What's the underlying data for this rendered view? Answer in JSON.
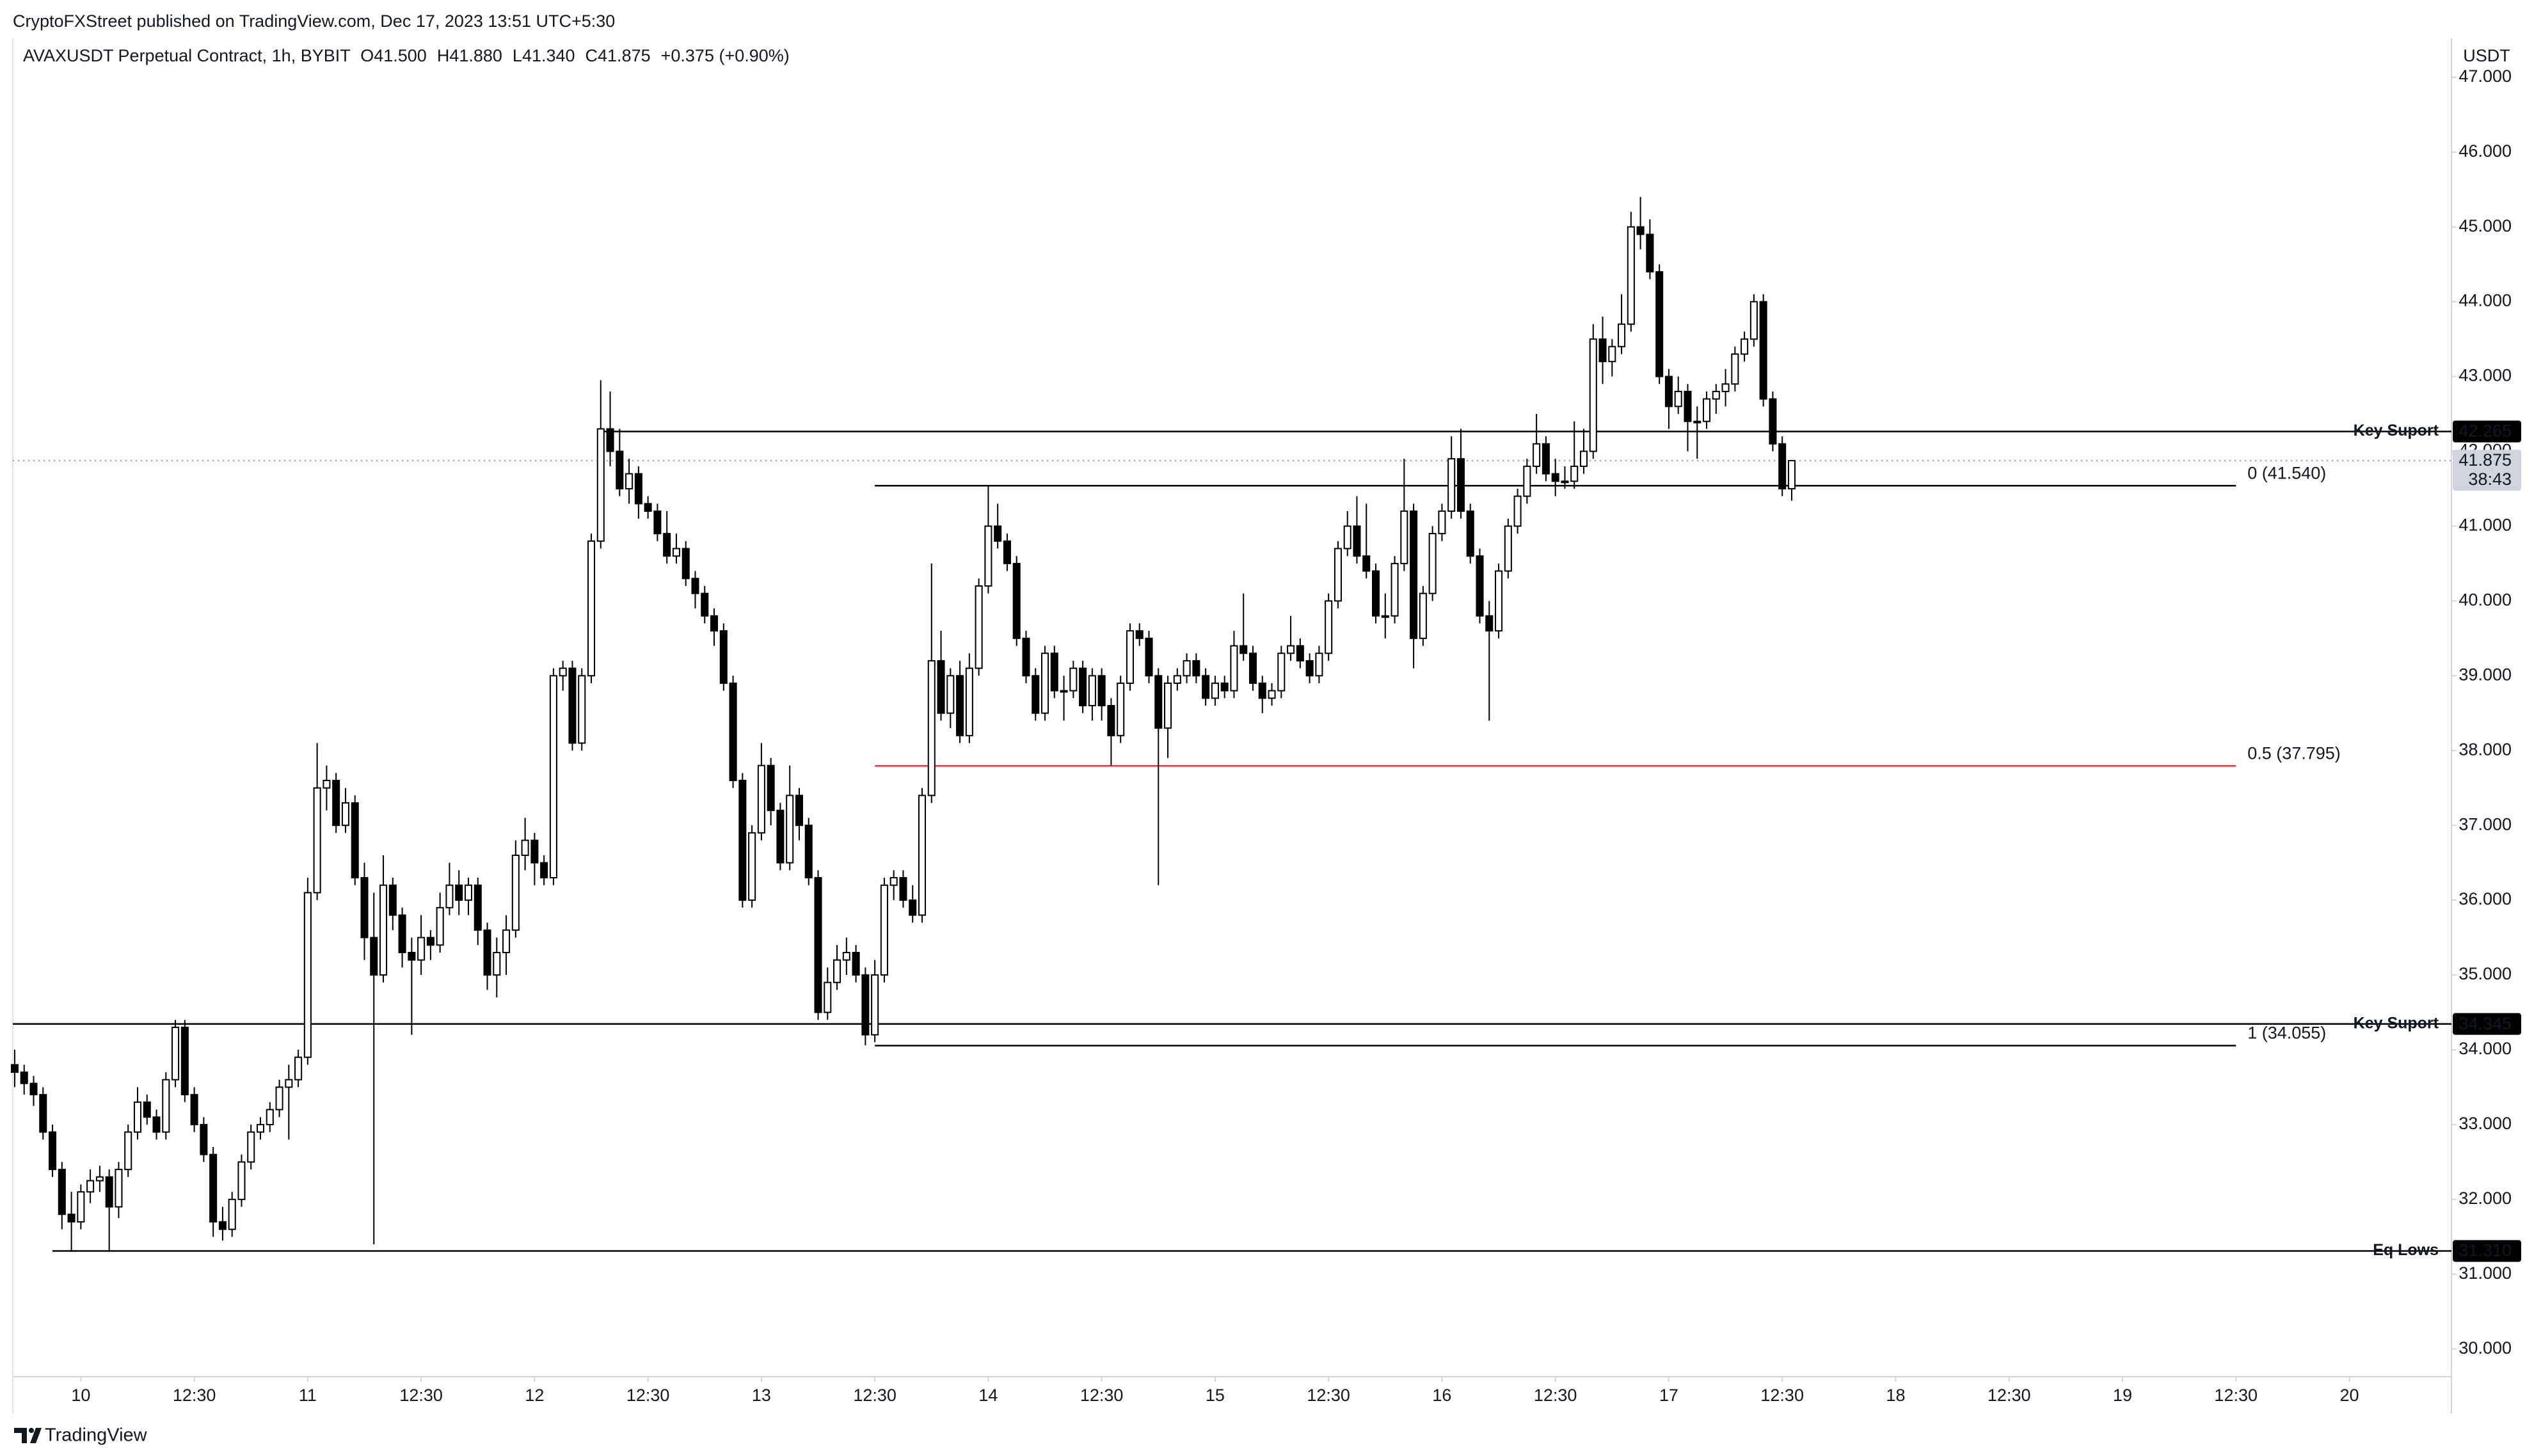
{
  "header": "CryptoFXStreet published on TradingView.com, Dec 17, 2023 13:51 UTC+5:30",
  "footer_brand": "TradingView",
  "chart_data": {
    "type": "candlestick",
    "title": "AVAXUSDT Perpetual Contract, 1h, BYBIT",
    "ohlc_legend": [
      "O41.500",
      "H41.880",
      "L41.340",
      "C41.875",
      "+0.375 (+0.90%)"
    ],
    "currency": "USDT",
    "up_color": "#ffffff",
    "down_color": "#000000",
    "outline_color": "#000000",
    "grid": false,
    "x": [
      -7,
      -6,
      -5,
      -4,
      -3,
      -2,
      -1,
      0,
      1,
      2,
      3,
      4,
      5,
      6,
      7,
      8,
      9,
      10,
      11,
      12,
      13,
      14,
      15,
      16,
      17,
      18,
      19,
      20,
      21,
      22,
      23,
      24,
      25,
      26,
      27,
      28,
      29,
      30,
      31,
      32,
      33,
      34,
      35,
      36,
      37,
      38,
      39,
      40,
      41,
      42,
      43,
      44,
      45,
      46,
      47,
      48,
      49,
      50,
      51,
      52,
      53,
      54,
      55,
      56,
      57,
      58,
      59,
      60,
      61,
      62,
      63,
      64,
      65,
      66,
      67,
      68,
      69,
      70,
      71,
      72,
      73,
      74,
      75,
      76,
      77,
      78,
      79,
      80,
      81,
      82,
      83,
      84,
      85,
      86,
      87,
      88,
      89,
      90,
      91,
      92,
      93,
      94,
      95,
      96,
      97,
      98,
      99,
      100,
      101,
      102,
      103,
      104,
      105,
      106,
      107,
      108,
      109,
      110,
      111,
      112,
      113,
      114,
      115,
      116,
      117,
      118,
      119,
      120,
      121,
      122,
      123,
      124,
      125,
      126,
      127,
      128,
      129,
      130,
      131,
      132,
      133,
      134,
      135,
      136,
      137,
      138,
      139,
      140,
      141,
      142,
      143,
      144,
      145,
      146,
      147,
      148,
      149,
      150,
      151,
      152,
      153,
      154,
      155,
      156,
      157,
      158,
      159,
      160,
      161,
      162,
      163,
      164,
      165,
      166,
      167,
      168,
      169,
      170,
      171,
      172,
      173,
      174,
      175,
      176,
      177,
      178,
      179,
      180,
      181
    ],
    "open": [
      33.8,
      33.7,
      33.55,
      33.4,
      32.9,
      32.4,
      31.8,
      31.7,
      32.1,
      32.25,
      32.3,
      31.9,
      32.4,
      32.9,
      33.3,
      33.1,
      32.9,
      33.6,
      34.3,
      33.4,
      33,
      32.6,
      31.7,
      31.6,
      32,
      32.5,
      32.9,
      33,
      33.2,
      33.5,
      33.6,
      33.9,
      36.1,
      37.5,
      37.6,
      37,
      37.3,
      36.3,
      35.5,
      35,
      36.2,
      35.8,
      35.3,
      35.2,
      35.5,
      35.4,
      35.9,
      36.2,
      36,
      36.2,
      35.6,
      35,
      35.3,
      35.6,
      36.6,
      36.8,
      36.5,
      36.3,
      39,
      39.1,
      38.1,
      39,
      40.8,
      42.3,
      42,
      41.5,
      41.7,
      41.3,
      41.2,
      40.9,
      40.6,
      40.7,
      40.3,
      40.1,
      39.8,
      39.6,
      38.9,
      37.6,
      36,
      36.9,
      37.8,
      37.2,
      36.5,
      37.4,
      37,
      36.3,
      34.5,
      34.9,
      35.2,
      35.3,
      35,
      34.2,
      35,
      36.2,
      36.3,
      36,
      35.8,
      37.4,
      39.2,
      38.5,
      39,
      38.2,
      39.1,
      40.2,
      41,
      40.8,
      40.5,
      39.5,
      39,
      38.5,
      39.3,
      38.8,
      38.8,
      39.1,
      38.6,
      39,
      38.6,
      38.2,
      38.9,
      39.6,
      39.5,
      39,
      38.3,
      38.9,
      39,
      39.2,
      39,
      38.7,
      38.9,
      38.8,
      39.4,
      39.3,
      38.9,
      38.7,
      38.8,
      39.3,
      39.4,
      39.2,
      39,
      39.3,
      40,
      40.7,
      41,
      40.6,
      40.4,
      39.8,
      39.8,
      40.5,
      41.2,
      39.5,
      40.1,
      40.9,
      41.2,
      41.9,
      41.2,
      40.6,
      39.8,
      39.6,
      40.4,
      41,
      41.4,
      41.8,
      42.1,
      41.7,
      41.6,
      41.6,
      41.8,
      42,
      43.5,
      43.2,
      43.4,
      43.7,
      45,
      44.9,
      44.4,
      43,
      42.6,
      42.8,
      42.4,
      42.4,
      42.7,
      42.8,
      42.9,
      43.3,
      43.5,
      44,
      42.7,
      42.1,
      41.5
    ],
    "high": [
      34,
      33.8,
      33.65,
      33.5,
      33,
      32.5,
      32.1,
      32.2,
      32.4,
      32.45,
      32.4,
      32.5,
      33,
      33.5,
      33.4,
      33.2,
      33.7,
      34.4,
      34.4,
      33.5,
      33.1,
      32.7,
      31.9,
      32.1,
      32.6,
      33,
      33.1,
      33.3,
      33.6,
      33.8,
      34,
      36.3,
      38.1,
      37.8,
      37.7,
      37.5,
      37.4,
      36.5,
      36.1,
      36.6,
      36.3,
      35.9,
      35.5,
      35.8,
      35.6,
      36.1,
      36.5,
      36.4,
      36.3,
      36.3,
      35.7,
      35.5,
      35.8,
      36.8,
      37.1,
      36.9,
      36.6,
      39.1,
      39.2,
      39.2,
      39.1,
      40.9,
      42.95,
      42.8,
      42.3,
      41.9,
      41.8,
      41.4,
      41.3,
      41.2,
      40.9,
      40.8,
      40.4,
      40.2,
      39.9,
      39.7,
      39,
      37.7,
      37,
      38.1,
      37.9,
      37.3,
      37.8,
      37.5,
      37.1,
      36.4,
      35.1,
      35.4,
      35.5,
      35.4,
      35.1,
      35.2,
      36.3,
      36.4,
      36.4,
      36.2,
      37.5,
      40.5,
      39.6,
      39.1,
      39.2,
      39.3,
      40.3,
      41.55,
      41.3,
      40.9,
      40.6,
      39.6,
      39.1,
      39.4,
      39.4,
      39,
      39.2,
      39.2,
      39.1,
      39.1,
      38.7,
      39,
      39.7,
      39.7,
      39.6,
      39.1,
      39,
      39.1,
      39.3,
      39.3,
      39.1,
      39,
      39,
      39.6,
      40.1,
      39.4,
      39,
      38.9,
      39.4,
      39.8,
      39.5,
      39.3,
      39.4,
      40.1,
      40.8,
      41.2,
      41.4,
      41.3,
      40.5,
      40.1,
      40.6,
      41.9,
      41.3,
      40.2,
      41,
      41.3,
      42.2,
      42.3,
      41.3,
      40.7,
      40,
      40.5,
      41.1,
      41.5,
      41.9,
      42.5,
      42.2,
      41.9,
      41.8,
      42.4,
      42.3,
      43.7,
      43.8,
      43.5,
      44.1,
      45.2,
      45.4,
      45.1,
      44.5,
      43.1,
      43,
      42.9,
      42.6,
      42.8,
      42.9,
      43.1,
      43.4,
      43.6,
      44.1,
      44.1,
      42.8,
      42.2,
      41.88
    ],
    "low": [
      33.5,
      33.4,
      33.25,
      32.8,
      32.3,
      31.6,
      31.3,
      31.6,
      31.95,
      32.1,
      31.3,
      31.75,
      32.3,
      32.8,
      33,
      32.8,
      32.8,
      33.5,
      33.3,
      32.9,
      32.5,
      31.5,
      31.45,
      31.5,
      31.9,
      32.4,
      32.8,
      32.9,
      33.1,
      32.8,
      33.5,
      33.8,
      36,
      37.2,
      36.9,
      36.9,
      36.2,
      35.2,
      31.4,
      34.9,
      35.6,
      35.1,
      34.2,
      35,
      35.2,
      35.3,
      35.8,
      35.8,
      35.8,
      35.4,
      34.8,
      34.7,
      35,
      35.5,
      36.4,
      36.2,
      36.2,
      36.2,
      38.8,
      38,
      38,
      38.9,
      40.7,
      41.8,
      41.4,
      41.3,
      41.1,
      41.1,
      40.8,
      40.5,
      40.5,
      40.2,
      39.9,
      39.7,
      39.4,
      38.8,
      37.5,
      35.9,
      35.9,
      36.8,
      37,
      36.4,
      36.4,
      36.8,
      36.2,
      34.4,
      34.4,
      34.8,
      35,
      34.9,
      34.06,
      34.1,
      34.9,
      36,
      35.9,
      35.7,
      35.7,
      37.3,
      38.4,
      38.3,
      38.1,
      38.1,
      39,
      40.1,
      40.7,
      40.4,
      39.4,
      38.9,
      38.4,
      38.4,
      38.7,
      38.4,
      38.7,
      38.5,
      38.4,
      38.4,
      37.8,
      38.1,
      38.8,
      39.4,
      38.9,
      36.2,
      37.9,
      38.8,
      38.9,
      38.9,
      38.6,
      38.6,
      38.7,
      38.7,
      39.2,
      38.8,
      38.5,
      38.6,
      38.7,
      39.2,
      39.1,
      38.9,
      38.9,
      39.2,
      39.9,
      40.6,
      40.5,
      40.3,
      39.7,
      39.5,
      39.7,
      40.4,
      39.1,
      39.4,
      40,
      40.8,
      41.1,
      41.1,
      40.5,
      39.7,
      38.4,
      39.5,
      40.3,
      40.9,
      41.3,
      41.7,
      41.6,
      41.4,
      41.5,
      41.5,
      41.7,
      41.9,
      42.9,
      43,
      43.3,
      43.6,
      44.7,
      44.3,
      42.9,
      42.3,
      42.5,
      42,
      41.9,
      42.3,
      42.5,
      42.6,
      42.8,
      43.2,
      43.4,
      42.6,
      42,
      41.4,
      41.34
    ],
    "close": [
      33.7,
      33.55,
      33.4,
      32.9,
      32.4,
      31.8,
      31.7,
      32.1,
      32.25,
      32.3,
      31.9,
      32.4,
      32.9,
      33.3,
      33.1,
      32.9,
      33.6,
      34.3,
      33.4,
      33,
      32.6,
      31.7,
      31.6,
      32,
      32.5,
      32.9,
      33,
      33.2,
      33.5,
      33.6,
      33.9,
      36.1,
      37.5,
      37.6,
      37,
      37.3,
      36.3,
      35.5,
      35,
      36.2,
      35.8,
      35.3,
      35.2,
      35.5,
      35.4,
      35.9,
      36.2,
      36,
      36.2,
      35.6,
      35,
      35.3,
      35.6,
      36.6,
      36.8,
      36.5,
      36.3,
      39,
      39.1,
      38.1,
      39,
      40.8,
      42.3,
      42,
      41.5,
      41.7,
      41.3,
      41.2,
      40.9,
      40.6,
      40.7,
      40.3,
      40.1,
      39.8,
      39.6,
      38.9,
      37.6,
      36,
      36.9,
      37.8,
      37.2,
      36.5,
      37.4,
      37,
      36.3,
      34.5,
      34.9,
      35.2,
      35.3,
      35,
      34.2,
      35,
      36.2,
      36.3,
      36,
      35.8,
      37.4,
      39.2,
      38.5,
      39,
      38.2,
      39.1,
      40.2,
      41,
      40.8,
      40.5,
      39.5,
      39,
      38.5,
      39.3,
      38.8,
      38.8,
      39.1,
      38.6,
      39,
      38.6,
      38.2,
      38.9,
      39.6,
      39.5,
      39,
      38.3,
      38.9,
      39,
      39.2,
      39,
      38.7,
      38.9,
      38.8,
      39.4,
      39.3,
      38.9,
      38.7,
      38.8,
      39.3,
      39.4,
      39.2,
      39,
      39.3,
      40,
      40.7,
      41,
      40.6,
      40.4,
      39.8,
      39.8,
      40.5,
      41.2,
      39.5,
      40.1,
      40.9,
      41.2,
      41.9,
      41.2,
      40.6,
      39.8,
      39.6,
      40.4,
      41,
      41.4,
      41.8,
      42.1,
      41.7,
      41.6,
      41.6,
      41.8,
      42,
      43.5,
      43.2,
      43.4,
      43.7,
      45,
      44.9,
      44.4,
      43,
      42.6,
      42.8,
      42.4,
      42.4,
      42.7,
      42.8,
      42.9,
      43.3,
      43.5,
      44,
      42.7,
      42.1,
      41.5,
      41.875
    ],
    "xlim": [
      -7.2,
      250.8
    ],
    "xticks": [
      {
        "value": 0,
        "label": "10"
      },
      {
        "value": 12,
        "label": "12:30"
      },
      {
        "value": 24,
        "label": "11"
      },
      {
        "value": 36,
        "label": "12:30"
      },
      {
        "value": 48,
        "label": "12"
      },
      {
        "value": 60,
        "label": "12:30"
      },
      {
        "value": 72,
        "label": "13"
      },
      {
        "value": 84,
        "label": "12:30"
      },
      {
        "value": 96,
        "label": "14"
      },
      {
        "value": 108,
        "label": "12:30"
      },
      {
        "value": 120,
        "label": "15"
      },
      {
        "value": 132,
        "label": "12:30"
      },
      {
        "value": 144,
        "label": "16"
      },
      {
        "value": 156,
        "label": "12:30"
      },
      {
        "value": 168,
        "label": "17"
      },
      {
        "value": 180,
        "label": "12:30"
      },
      {
        "value": 192,
        "label": "18"
      },
      {
        "value": 204,
        "label": "12:30"
      },
      {
        "value": 216,
        "label": "19"
      },
      {
        "value": 228,
        "label": "12:30"
      },
      {
        "value": 240,
        "label": "20"
      }
    ],
    "ylim": [
      29.63,
      47.52
    ],
    "yticks": [
      {
        "value": 30,
        "label": "30.000"
      },
      {
        "value": 31,
        "label": "31.000"
      },
      {
        "value": 32,
        "label": "32.000"
      },
      {
        "value": 33,
        "label": "33.000"
      },
      {
        "value": 34,
        "label": "34.000"
      },
      {
        "value": 35,
        "label": "35.000"
      },
      {
        "value": 36,
        "label": "36.000"
      },
      {
        "value": 37,
        "label": "37.000"
      },
      {
        "value": 38,
        "label": "38.000"
      },
      {
        "value": 39,
        "label": "39.000"
      },
      {
        "value": 40,
        "label": "40.000"
      },
      {
        "value": 41,
        "label": "41.000"
      },
      {
        "value": 42,
        "label": "42.000"
      },
      {
        "value": 43,
        "label": "43.000"
      },
      {
        "value": 44,
        "label": "44.000"
      },
      {
        "value": 45,
        "label": "45.000"
      },
      {
        "value": 46,
        "label": "46.000"
      },
      {
        "value": 47,
        "label": "47.000"
      }
    ],
    "levels": [
      {
        "text": "Key Suport",
        "value": 42.265,
        "value_label": "42.265",
        "x_start": 55,
        "line_color": "#000000",
        "text_color": "#f23645"
      },
      {
        "text": "Key Suport",
        "value": 34.345,
        "value_label": "34.345",
        "line_color": "#000000",
        "text_color": "#f23645"
      },
      {
        "text": "Eq Lows",
        "value": 31.31,
        "value_label": "31.310",
        "x_start": -3,
        "line_color": "#000000",
        "text_color": "#f23645"
      },
      {
        "label": "0 (41.540)",
        "value": 41.54,
        "x_start": 84,
        "x_end": 228,
        "line_color": "#000000",
        "text_color": "#131722"
      },
      {
        "label": "0.5 (37.795)",
        "value": 37.795,
        "x_start": 84,
        "x_end": 228,
        "line_color": "#f23645",
        "text_color": "#f23645"
      },
      {
        "label": "1 (34.055)",
        "value": 34.055,
        "x_start": 84,
        "x_end": 228,
        "line_color": "#000000",
        "text_color": "#131722"
      }
    ],
    "last_price": {
      "value": 41.875,
      "label": "41.875",
      "countdown": "38:43"
    }
  }
}
